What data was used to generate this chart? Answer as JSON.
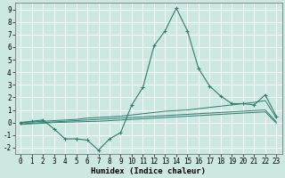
{
  "xlabel": "Humidex (Indice chaleur)",
  "background_color": "#cce8e0",
  "line_color": "#2e7d6e",
  "x_values": [
    0,
    1,
    2,
    3,
    4,
    5,
    6,
    7,
    8,
    9,
    10,
    11,
    12,
    13,
    14,
    15,
    16,
    17,
    18,
    19,
    20,
    21,
    22,
    23
  ],
  "series": {
    "main": [
      0.0,
      0.1,
      0.2,
      -0.5,
      -1.3,
      -1.3,
      -1.4,
      -2.2,
      -1.3,
      -0.8,
      1.4,
      2.8,
      6.1,
      7.3,
      9.1,
      7.3,
      4.3,
      2.9,
      2.1,
      1.5,
      1.5,
      1.4,
      2.2,
      0.5
    ],
    "line1": [
      0.0,
      0.05,
      0.1,
      0.15,
      0.2,
      0.25,
      0.35,
      0.4,
      0.45,
      0.5,
      0.6,
      0.7,
      0.8,
      0.9,
      0.95,
      1.0,
      1.1,
      1.2,
      1.3,
      1.4,
      1.5,
      1.6,
      1.75,
      0.35
    ],
    "line2": [
      -0.1,
      -0.05,
      0.0,
      0.05,
      0.1,
      0.15,
      0.2,
      0.25,
      0.3,
      0.35,
      0.4,
      0.45,
      0.5,
      0.55,
      0.6,
      0.65,
      0.7,
      0.75,
      0.8,
      0.85,
      0.9,
      0.95,
      1.0,
      0.05
    ],
    "line3": [
      -0.15,
      -0.1,
      -0.05,
      0.0,
      0.02,
      0.05,
      0.08,
      0.1,
      0.15,
      0.2,
      0.25,
      0.3,
      0.35,
      0.4,
      0.45,
      0.5,
      0.55,
      0.6,
      0.65,
      0.7,
      0.75,
      0.8,
      0.85,
      -0.05
    ]
  },
  "ylim": [
    -2.5,
    9.5
  ],
  "xlim": [
    -0.5,
    23.5
  ],
  "yticks": [
    -2,
    -1,
    0,
    1,
    2,
    3,
    4,
    5,
    6,
    7,
    8,
    9
  ],
  "xticks": [
    0,
    1,
    2,
    3,
    4,
    5,
    6,
    7,
    8,
    9,
    10,
    11,
    12,
    13,
    14,
    15,
    16,
    17,
    18,
    19,
    20,
    21,
    22,
    23
  ],
  "xlabel_fontsize": 6.5,
  "tick_fontsize": 5.5,
  "grid_color": "#b8d8d0"
}
